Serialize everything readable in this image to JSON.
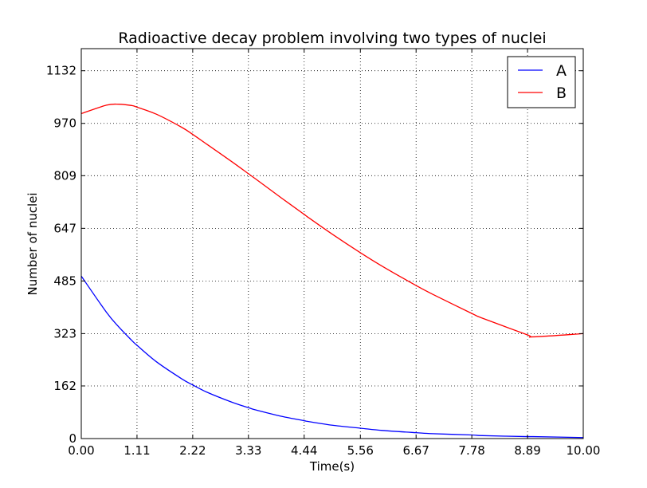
{
  "chart_data": {
    "type": "line",
    "title": "Radioactive decay problem involving two types of nuclei",
    "xlabel": "Time(s)",
    "ylabel": "Number of nuclei",
    "xlim": [
      0,
      10
    ],
    "ylim": [
      0,
      1200
    ],
    "x_ticks": [
      "0.00",
      "1.11",
      "2.22",
      "3.33",
      "4.44",
      "5.56",
      "6.67",
      "7.78",
      "8.89",
      "10.00"
    ],
    "y_ticks": [
      "0",
      "162",
      "323",
      "485",
      "647",
      "809",
      "970",
      "1132"
    ],
    "grid": true,
    "legend_position": "top-right",
    "x": [
      0,
      0.5,
      0.75,
      1.0,
      1.11,
      1.5,
      2.0,
      2.22,
      2.5,
      3.0,
      3.33,
      3.5,
      4.0,
      4.44,
      4.5,
      5.0,
      5.56,
      6.0,
      6.67,
      7.0,
      7.78,
      8.0,
      8.89,
      9.0,
      10.0
    ],
    "series": [
      {
        "name": "A",
        "color": "#0000ff",
        "values": [
          500,
          389,
          343,
          303,
          287,
          236,
          184,
          165,
          143,
          112,
          95,
          87,
          68,
          55,
          53,
          41,
          32,
          25,
          18,
          15,
          11,
          9,
          6,
          6,
          3
        ]
      },
      {
        "name": "B",
        "color": "#ff0000",
        "values": [
          1000,
          1026,
          1029,
          1025,
          1020,
          998,
          958,
          936,
          906,
          852,
          815,
          796,
          739,
          690,
          683,
          629,
          572,
          530,
          471,
          444,
          385,
          370,
          319,
          313,
          323
        ]
      }
    ]
  }
}
